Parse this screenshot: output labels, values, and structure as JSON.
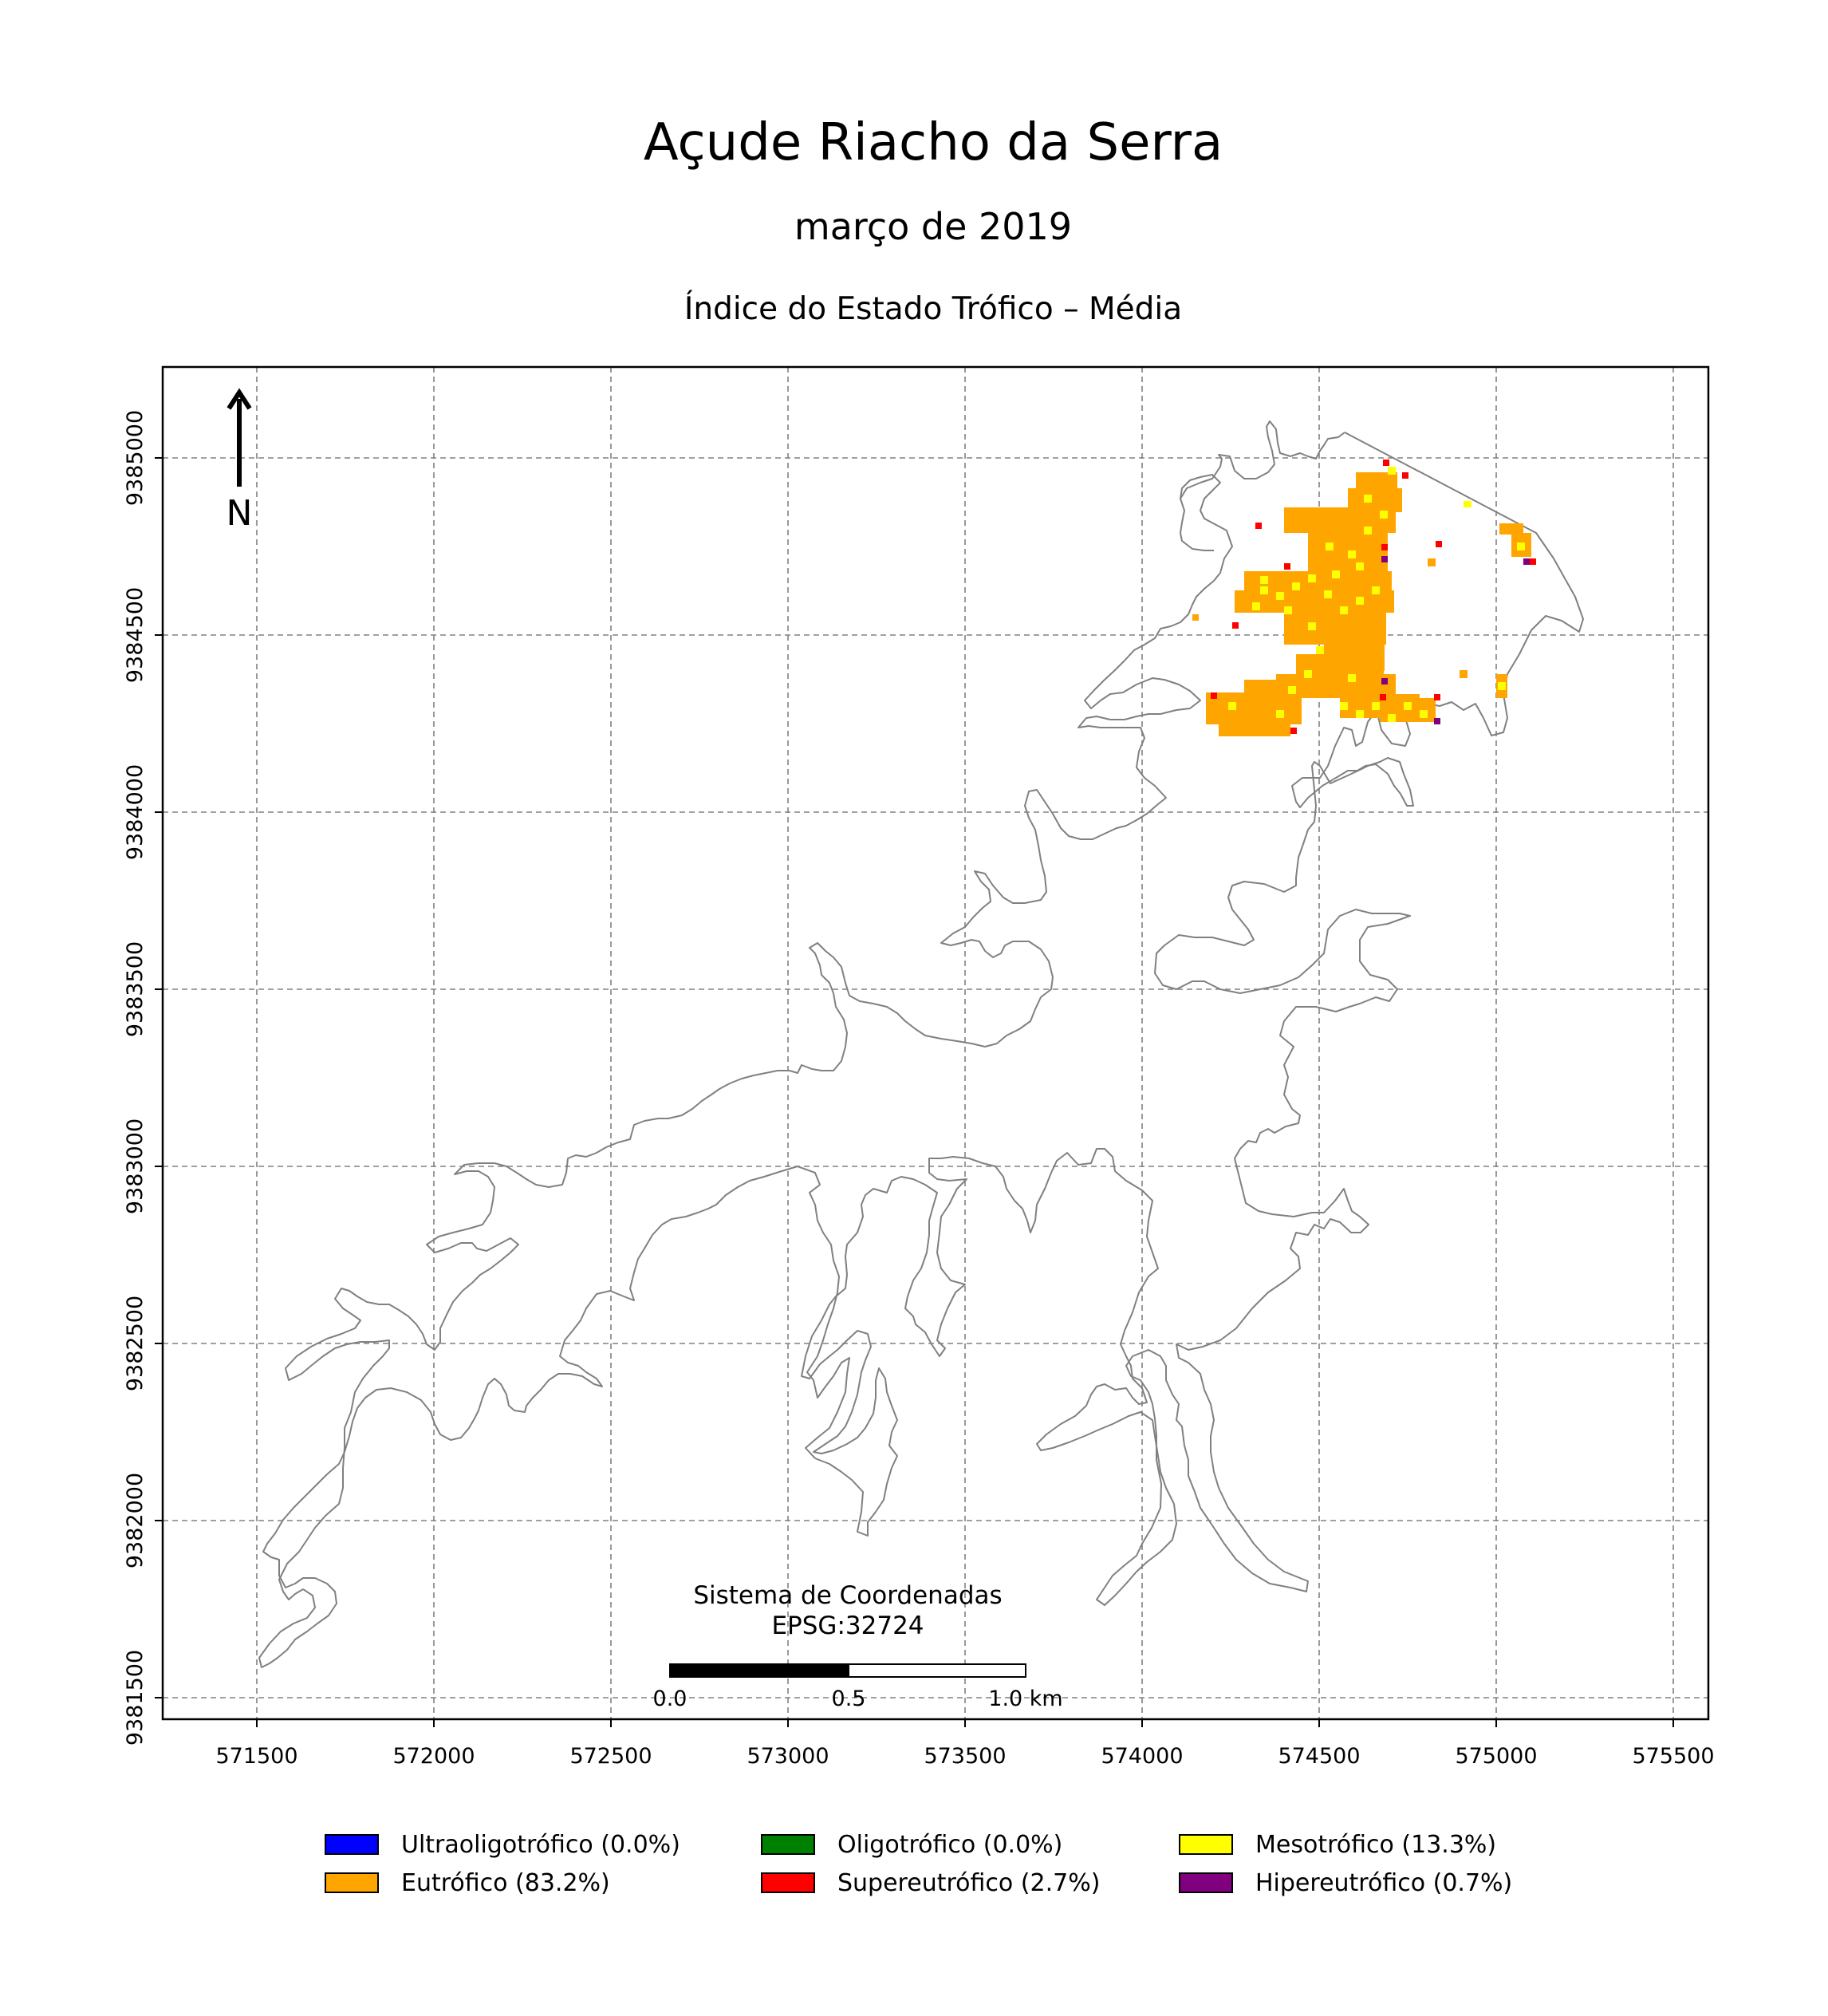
{
  "header": {
    "title": "Açude Riacho da Serra",
    "subtitle": "março de 2019",
    "index_title": "Índice do Estado Trófico – Média"
  },
  "north_arrow": {
    "label": "N"
  },
  "crs": {
    "line1": "Sistema de Coordenadas",
    "line2": "EPSG:32724"
  },
  "scale_bar": {
    "labels": [
      "0.0",
      "0.5",
      "1.0 km"
    ]
  },
  "axes": {
    "x_ticks": [
      "571500",
      "572000",
      "572500",
      "573000",
      "573500",
      "574000",
      "574500",
      "575000",
      "575500"
    ],
    "y_ticks": [
      "9381500",
      "9382000",
      "9382500",
      "9383000",
      "9383500",
      "9384000",
      "9384500",
      "9385000"
    ],
    "grid": true,
    "grid_style": "dashed"
  },
  "legend": {
    "items": [
      {
        "label": "Ultraoligotrófico (0.0%)",
        "color": "#0000ff"
      },
      {
        "label": "Oligotrófico (0.0%)",
        "color": "#008000"
      },
      {
        "label": "Mesotrófico (13.3%)",
        "color": "#ffff00"
      },
      {
        "label": "Eutrófico (83.2%)",
        "color": "#ffa500"
      },
      {
        "label": "Supereutrófico (2.7%)",
        "color": "#ff0000"
      },
      {
        "label": "Hipereutrófico (0.7%)",
        "color": "#800080"
      }
    ]
  },
  "colors": {
    "outline": "#808080",
    "grid": "#808080",
    "eutrofico": "#ffa500",
    "mesotrofico": "#ffff00",
    "supereutrofico": "#ff0000",
    "hipereutrofico": "#800080"
  }
}
